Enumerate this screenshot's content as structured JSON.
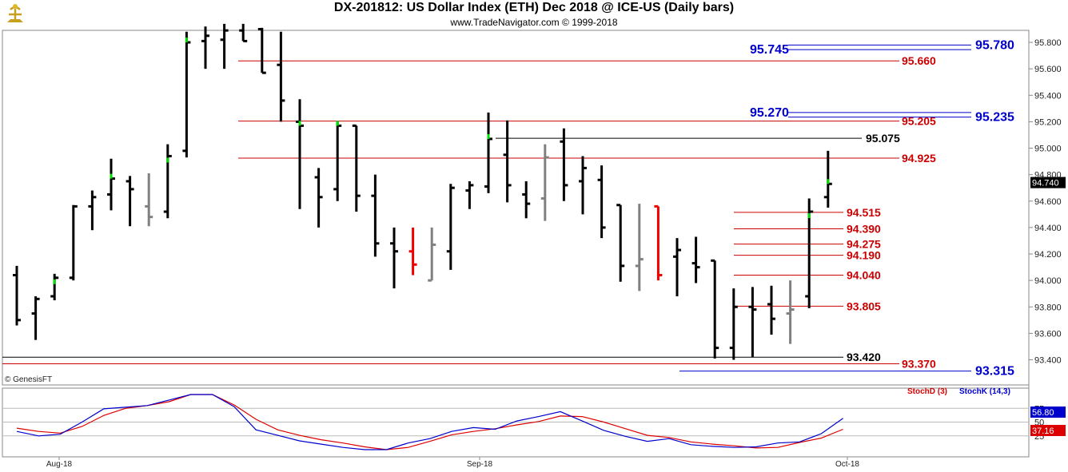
{
  "header": {
    "title": "DX-201812:  US Dollar Index (ETH) Dec 2018 @ ICE-US  (Daily bars)",
    "subtitle": "www.TradeNavigator.com © 1999-2018",
    "watermark": "© GenesisFT"
  },
  "colors": {
    "up": "#000000",
    "down": "#000000",
    "green_tick": "#00dd00",
    "red_bar": "#ee0000",
    "gray_bar": "#808080",
    "resistance": "#cc0000",
    "support_blue": "#0000cc",
    "stochD": "#dd0000",
    "stochK": "#0000cc"
  },
  "chart_data": [
    {
      "type": "ohlc",
      "y_axis": {
        "min": 93.3,
        "max": 95.9,
        "ticks": [
          "95.800",
          "95.600",
          "95.400",
          "95.200",
          "95.000",
          "94.800",
          "94.600",
          "94.400",
          "94.200",
          "94.000",
          "93.800",
          "93.600",
          "93.400"
        ]
      },
      "last_price": "94.740",
      "x_labels": [
        "Aug-18",
        "Sep-18",
        "Oct-18"
      ],
      "bars": [
        {
          "o": 94.04,
          "h": 94.11,
          "l": 93.66,
          "c": 93.7
        },
        {
          "o": 93.75,
          "h": 93.88,
          "l": 93.55,
          "c": 93.86
        },
        {
          "o": 93.88,
          "h": 94.05,
          "l": 93.85,
          "c": 94.02,
          "t": "g"
        },
        {
          "o": 94.02,
          "h": 94.57,
          "l": 94.0,
          "c": 94.56
        },
        {
          "o": 94.56,
          "h": 94.68,
          "l": 94.38,
          "c": 94.63
        },
        {
          "o": 94.65,
          "h": 94.92,
          "l": 94.53,
          "c": 94.77,
          "t": "g"
        },
        {
          "o": 94.75,
          "h": 94.79,
          "l": 94.41,
          "c": 94.69
        },
        {
          "o": 94.56,
          "h": 94.81,
          "l": 94.41,
          "c": 94.48,
          "t": "gray"
        },
        {
          "o": 94.52,
          "h": 95.03,
          "l": 94.47,
          "c": 94.94,
          "t": "g"
        },
        {
          "o": 94.98,
          "h": 95.88,
          "l": 94.93,
          "c": 95.8,
          "t": "g"
        },
        {
          "o": 95.81,
          "h": 95.92,
          "l": 95.6,
          "c": 95.85
        },
        {
          "o": 95.82,
          "h": 95.94,
          "l": 95.6,
          "c": 95.89
        },
        {
          "o": 95.89,
          "h": 95.94,
          "l": 95.81,
          "c": 95.81
        },
        {
          "o": 95.9,
          "h": 95.91,
          "l": 95.57,
          "c": 95.57
        },
        {
          "o": 95.63,
          "h": 95.88,
          "l": 95.2,
          "c": 95.36
        },
        {
          "o": 95.2,
          "h": 95.37,
          "l": 94.54,
          "c": 95.17,
          "t": "g"
        },
        {
          "o": 94.78,
          "h": 94.85,
          "l": 94.4,
          "c": 94.63
        },
        {
          "o": 94.69,
          "h": 95.2,
          "l": 94.6,
          "c": 95.17,
          "t": "g"
        },
        {
          "o": 95.17,
          "h": 95.17,
          "l": 94.52,
          "c": 94.64
        },
        {
          "o": 94.64,
          "h": 94.8,
          "l": 94.18,
          "c": 94.28
        },
        {
          "o": 94.28,
          "h": 94.4,
          "l": 93.94,
          "c": 94.22
        },
        {
          "o": 94.22,
          "h": 94.4,
          "l": 94.04,
          "c": 94.12,
          "t": "red"
        },
        {
          "o": 94.0,
          "h": 94.4,
          "l": 94.0,
          "c": 94.27,
          "t": "gray"
        },
        {
          "o": 94.22,
          "h": 94.73,
          "l": 94.08,
          "c": 94.7
        },
        {
          "o": 94.68,
          "h": 94.75,
          "l": 94.54,
          "c": 94.72
        },
        {
          "o": 94.71,
          "h": 95.27,
          "l": 94.66,
          "c": 95.07,
          "t": "g"
        },
        {
          "o": 94.95,
          "h": 95.21,
          "l": 94.59,
          "c": 94.72
        },
        {
          "o": 94.65,
          "h": 94.75,
          "l": 94.47,
          "c": 94.58
        },
        {
          "o": 94.62,
          "h": 95.03,
          "l": 94.45,
          "c": 94.93,
          "t": "gray"
        },
        {
          "o": 95.05,
          "h": 95.15,
          "l": 94.6,
          "c": 94.72
        },
        {
          "o": 94.75,
          "h": 94.94,
          "l": 94.5,
          "c": 94.85
        },
        {
          "o": 94.76,
          "h": 94.87,
          "l": 94.32,
          "c": 94.4
        },
        {
          "o": 94.57,
          "h": 94.57,
          "l": 93.99,
          "c": 94.11
        },
        {
          "o": 94.11,
          "h": 94.58,
          "l": 93.92,
          "c": 94.16,
          "t": "gray"
        },
        {
          "o": 94.56,
          "h": 94.56,
          "l": 94.0,
          "c": 94.04,
          "t": "red"
        },
        {
          "o": 94.18,
          "h": 94.32,
          "l": 93.88,
          "c": 94.23
        },
        {
          "o": 94.13,
          "h": 94.33,
          "l": 93.98,
          "c": 94.1
        },
        {
          "o": 94.15,
          "h": 94.15,
          "l": 93.41,
          "c": 93.49
        },
        {
          "o": 93.49,
          "h": 93.94,
          "l": 93.4,
          "c": 93.8
        },
        {
          "o": 93.8,
          "h": 93.95,
          "l": 93.42,
          "c": 93.78
        },
        {
          "o": 93.82,
          "h": 93.96,
          "l": 93.59,
          "c": 93.71
        },
        {
          "o": 93.75,
          "h": 94.0,
          "l": 93.52,
          "c": 93.78,
          "t": "gray"
        },
        {
          "o": 93.88,
          "h": 94.62,
          "l": 93.79,
          "c": 94.52,
          "t": "g"
        },
        {
          "o": 94.63,
          "h": 94.98,
          "l": 94.55,
          "c": 94.73,
          "t": "g"
        }
      ],
      "levels": [
        {
          "price": 95.745,
          "label": "95.745",
          "color": "blue",
          "side": "left"
        },
        {
          "price": 95.78,
          "label": "95.780",
          "color": "blue",
          "side": "right"
        },
        {
          "price": 95.66,
          "label": "95.660",
          "color": "red"
        },
        {
          "price": 95.27,
          "label": "95.270",
          "color": "blue",
          "side": "left"
        },
        {
          "price": 95.235,
          "label": "95.235",
          "color": "blue",
          "side": "right"
        },
        {
          "price": 95.205,
          "label": "95.205",
          "color": "red"
        },
        {
          "price": 95.075,
          "label": "95.075",
          "color": "black"
        },
        {
          "price": 94.925,
          "label": "94.925",
          "color": "red"
        },
        {
          "price": 94.515,
          "label": "94.515",
          "color": "red"
        },
        {
          "price": 94.39,
          "label": "94.390",
          "color": "red"
        },
        {
          "price": 94.275,
          "label": "94.275",
          "color": "red"
        },
        {
          "price": 94.19,
          "label": "94.190",
          "color": "red"
        },
        {
          "price": 94.04,
          "label": "94.040",
          "color": "red"
        },
        {
          "price": 93.805,
          "label": "93.805",
          "color": "red"
        },
        {
          "price": 93.42,
          "label": "93.420",
          "color": "black"
        },
        {
          "price": 93.37,
          "label": "93.370",
          "color": "red"
        },
        {
          "price": 93.315,
          "label": "93.315",
          "color": "blue"
        }
      ]
    },
    {
      "type": "line",
      "name": "stochastic",
      "legend": [
        "StochD (3)",
        "StochK (14,3)"
      ],
      "y_ticks": [
        "75",
        "50",
        "25"
      ],
      "y_range": [
        0,
        100
      ],
      "last_k": "56.80",
      "last_d": "37.16",
      "series": [
        {
          "name": "StochD (3)",
          "points": [
            [
              0,
              39
            ],
            [
              2,
              33
            ],
            [
              4,
              30
            ],
            [
              6,
              42
            ],
            [
              8,
              62
            ],
            [
              10,
              75
            ],
            [
              12,
              80
            ],
            [
              14,
              87
            ],
            [
              16,
              100
            ],
            [
              18,
              100
            ],
            [
              20,
              81
            ],
            [
              22,
              55
            ],
            [
              24,
              36
            ],
            [
              26,
              26
            ],
            [
              28,
              18
            ],
            [
              30,
              12
            ],
            [
              32,
              5
            ],
            [
              34,
              0
            ],
            [
              36,
              4
            ],
            [
              38,
              15
            ],
            [
              40,
              27
            ],
            [
              42,
              33
            ],
            [
              44,
              38
            ],
            [
              46,
              45
            ],
            [
              48,
              51
            ],
            [
              50,
              61
            ],
            [
              52,
              60
            ],
            [
              54,
              50
            ],
            [
              56,
              38
            ],
            [
              58,
              26
            ],
            [
              60,
              22
            ],
            [
              62,
              14
            ],
            [
              64,
              10
            ],
            [
              66,
              7
            ],
            [
              68,
              3
            ],
            [
              70,
              4
            ],
            [
              72,
              13
            ],
            [
              74,
              21
            ],
            [
              76,
              37
            ]
          ]
        },
        {
          "name": "StochK (14,3)",
          "points": [
            [
              0,
              33
            ],
            [
              2,
              25
            ],
            [
              4,
              28
            ],
            [
              6,
              50
            ],
            [
              8,
              74
            ],
            [
              10,
              77
            ],
            [
              12,
              80
            ],
            [
              14,
              90
            ],
            [
              16,
              100
            ],
            [
              18,
              100
            ],
            [
              20,
              78
            ],
            [
              22,
              36
            ],
            [
              24,
              26
            ],
            [
              26,
              16
            ],
            [
              28,
              10
            ],
            [
              30,
              4
            ],
            [
              32,
              0
            ],
            [
              34,
              0
            ],
            [
              36,
              12
            ],
            [
              38,
              20
            ],
            [
              40,
              33
            ],
            [
              42,
              40
            ],
            [
              44,
              37
            ],
            [
              46,
              52
            ],
            [
              48,
              60
            ],
            [
              50,
              69
            ],
            [
              52,
              52
            ],
            [
              54,
              35
            ],
            [
              56,
              24
            ],
            [
              58,
              15
            ],
            [
              60,
              20
            ],
            [
              62,
              9
            ],
            [
              64,
              6
            ],
            [
              66,
              4
            ],
            [
              68,
              5
            ],
            [
              70,
              12
            ],
            [
              72,
              14
            ],
            [
              74,
              29
            ],
            [
              76,
              57
            ]
          ]
        }
      ]
    }
  ]
}
